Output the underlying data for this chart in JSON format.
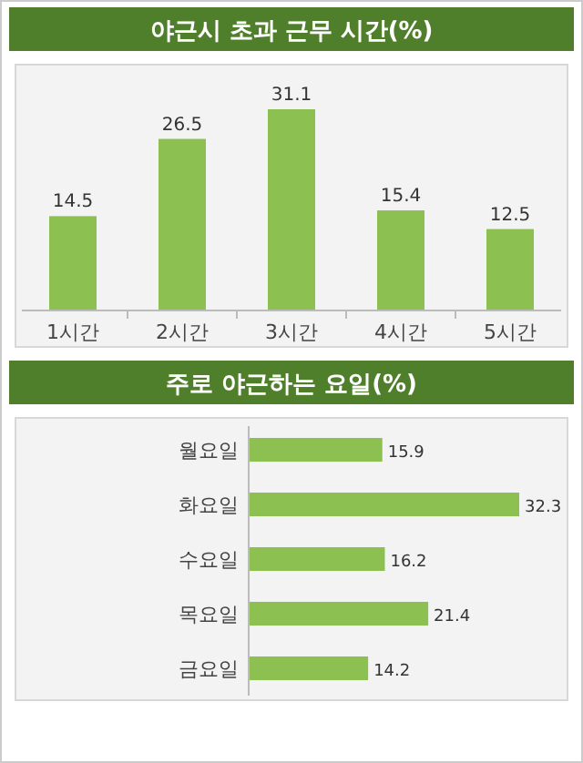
{
  "chart_data": [
    {
      "type": "bar",
      "title": "야근시 초과 근무 시간(%)",
      "categories": [
        "1시간",
        "2시간",
        "3시간",
        "4시간",
        "5시간"
      ],
      "values": [
        14.5,
        26.5,
        31.1,
        15.4,
        12.5
      ],
      "color": "#8cc152",
      "data_labels": true
    },
    {
      "type": "bar",
      "orientation": "horizontal",
      "title": "주로 야근하는 요일(%)",
      "categories": [
        "월요일",
        "화요일",
        "수요일",
        "목요일",
        "금요일"
      ],
      "values": [
        15.9,
        32.3,
        16.2,
        21.4,
        14.2
      ],
      "color": "#8cc152",
      "data_labels": true
    }
  ]
}
